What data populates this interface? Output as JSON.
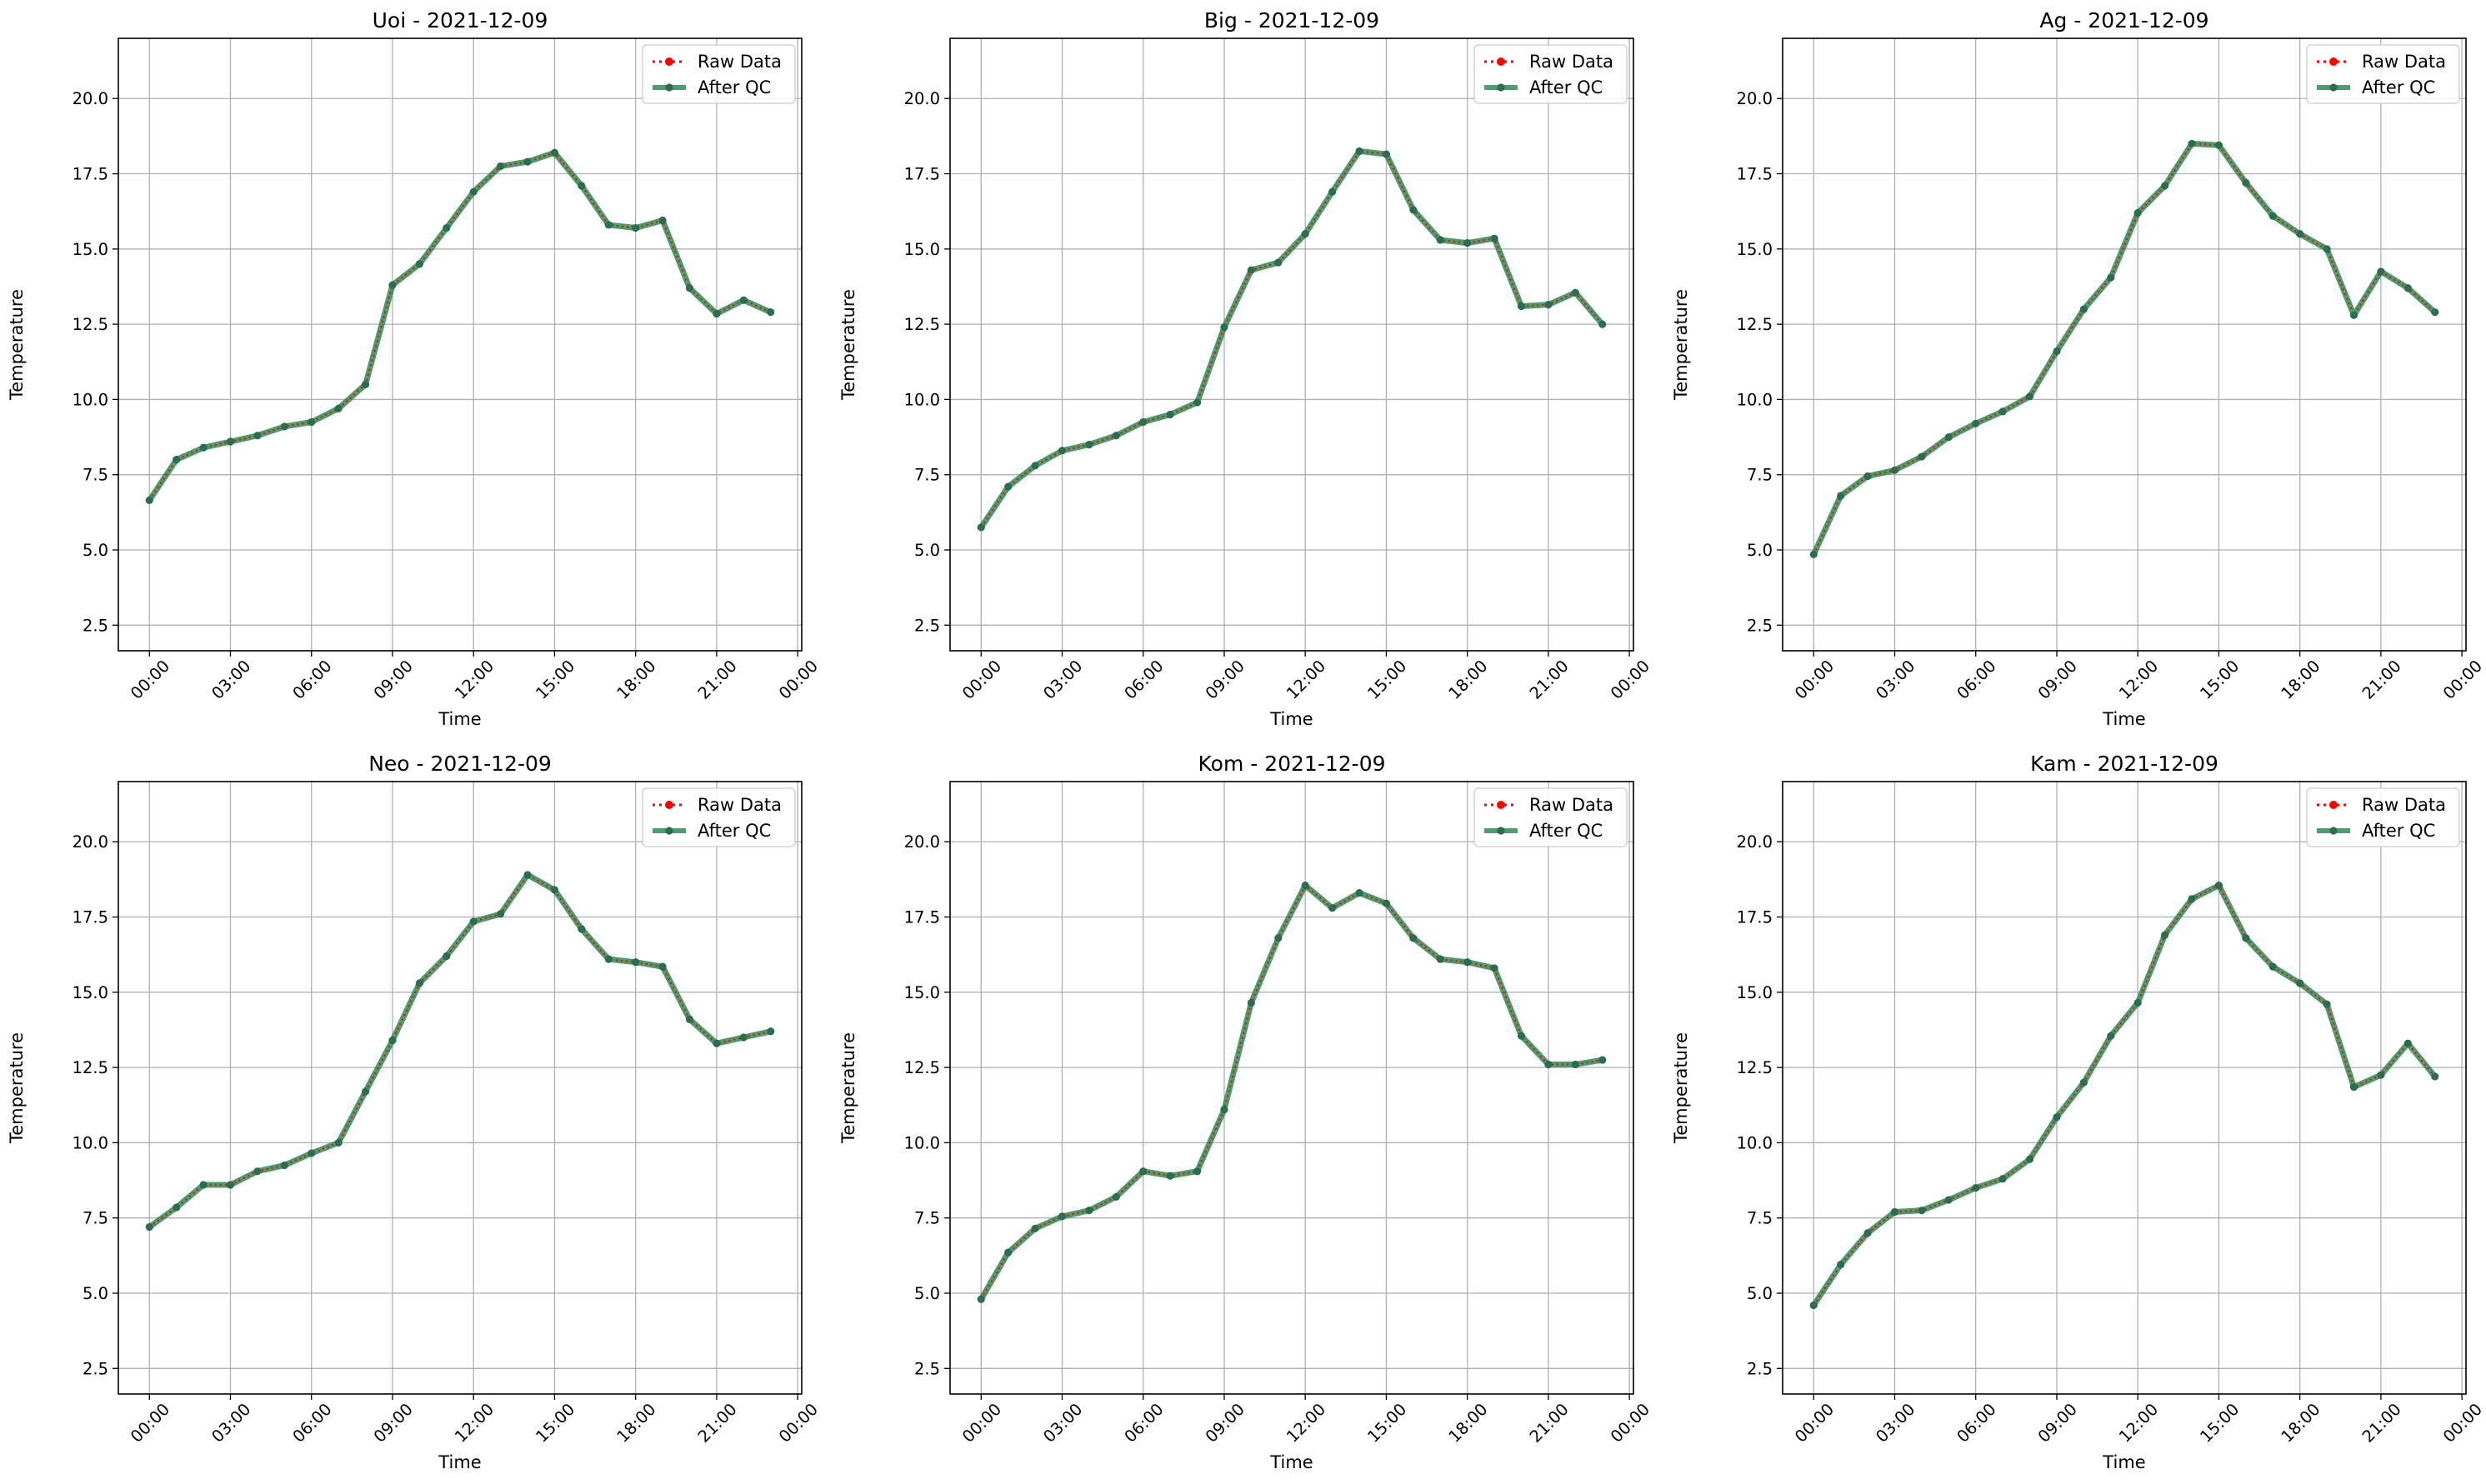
{
  "figure": {
    "x_tick_labels": [
      "00:00",
      "03:00",
      "06:00",
      "09:00",
      "12:00",
      "15:00",
      "18:00",
      "21:00",
      "00:00"
    ],
    "y_tick_labels": [
      "2.5",
      "5.0",
      "7.5",
      "10.0",
      "12.5",
      "15.0",
      "17.5",
      "20.0"
    ],
    "legend": {
      "raw": "Raw Data",
      "qc": "After QC"
    },
    "colors": {
      "raw": "#ff0000",
      "qc": "#2e8b57",
      "qc_marker": "#2e6b50",
      "grid": "#b0b0b0"
    }
  },
  "chart_data": [
    {
      "type": "line",
      "title": "Uoi - 2021-12-09",
      "xlabel": "Time",
      "ylabel": "Temperature",
      "x": [
        "00:00",
        "01:00",
        "02:00",
        "03:00",
        "04:00",
        "05:00",
        "06:00",
        "07:00",
        "08:00",
        "09:00",
        "10:00",
        "11:00",
        "12:00",
        "13:00",
        "14:00",
        "15:00",
        "16:00",
        "17:00",
        "18:00",
        "19:00",
        "20:00",
        "21:00",
        "22:00",
        "23:00"
      ],
      "xlim": [
        "2021-12-09 00:00",
        "2021-12-10 00:00"
      ],
      "ylim": [
        1.65,
        22.0
      ],
      "grid": true,
      "legend_position": "top-right",
      "series": [
        {
          "name": "Raw Data",
          "values": [
            6.65,
            8.0,
            8.4,
            8.6,
            8.8,
            9.1,
            9.25,
            9.7,
            10.5,
            13.8,
            14.5,
            15.7,
            16.9,
            17.75,
            17.9,
            18.2,
            17.1,
            15.8,
            15.7,
            15.95,
            13.7,
            12.85,
            13.3,
            12.9
          ]
        },
        {
          "name": "After QC",
          "values": [
            6.65,
            8.0,
            8.4,
            8.6,
            8.8,
            9.1,
            9.25,
            9.7,
            10.5,
            13.8,
            14.5,
            15.7,
            16.9,
            17.75,
            17.9,
            18.2,
            17.1,
            15.8,
            15.7,
            15.95,
            13.7,
            12.85,
            13.3,
            12.9
          ]
        }
      ]
    },
    {
      "type": "line",
      "title": "Big - 2021-12-09",
      "xlabel": "Time",
      "ylabel": "Temperature",
      "x": [
        "00:00",
        "01:00",
        "02:00",
        "03:00",
        "04:00",
        "05:00",
        "06:00",
        "07:00",
        "08:00",
        "09:00",
        "10:00",
        "11:00",
        "12:00",
        "13:00",
        "14:00",
        "15:00",
        "16:00",
        "17:00",
        "18:00",
        "19:00",
        "20:00",
        "21:00",
        "22:00",
        "23:00"
      ],
      "xlim": [
        "2021-12-09 00:00",
        "2021-12-10 00:00"
      ],
      "ylim": [
        1.65,
        22.0
      ],
      "grid": true,
      "legend_position": "top-right",
      "series": [
        {
          "name": "Raw Data",
          "values": [
            5.75,
            7.1,
            7.8,
            8.3,
            8.5,
            8.8,
            9.25,
            9.5,
            9.9,
            12.4,
            14.3,
            14.55,
            15.5,
            16.9,
            18.25,
            18.15,
            16.3,
            15.3,
            15.2,
            15.35,
            13.1,
            13.15,
            13.55,
            12.5
          ]
        },
        {
          "name": "After QC",
          "values": [
            5.75,
            7.1,
            7.8,
            8.3,
            8.5,
            8.8,
            9.25,
            9.5,
            9.9,
            12.4,
            14.3,
            14.55,
            15.5,
            16.9,
            18.25,
            18.15,
            16.3,
            15.3,
            15.2,
            15.35,
            13.1,
            13.15,
            13.55,
            12.5
          ]
        }
      ]
    },
    {
      "type": "line",
      "title": "Ag - 2021-12-09",
      "xlabel": "Time",
      "ylabel": "Temperature",
      "x": [
        "00:00",
        "01:00",
        "02:00",
        "03:00",
        "04:00",
        "05:00",
        "06:00",
        "07:00",
        "08:00",
        "09:00",
        "10:00",
        "11:00",
        "12:00",
        "13:00",
        "14:00",
        "15:00",
        "16:00",
        "17:00",
        "18:00",
        "19:00",
        "20:00",
        "21:00",
        "22:00",
        "23:00"
      ],
      "xlim": [
        "2021-12-09 00:00",
        "2021-12-10 00:00"
      ],
      "ylim": [
        1.65,
        22.0
      ],
      "grid": true,
      "legend_position": "top-right",
      "series": [
        {
          "name": "Raw Data",
          "values": [
            4.85,
            6.8,
            7.45,
            7.65,
            8.1,
            8.75,
            9.2,
            9.6,
            10.1,
            11.6,
            13.0,
            14.05,
            16.2,
            17.1,
            18.5,
            18.45,
            17.2,
            16.1,
            15.5,
            15.0,
            12.8,
            14.25,
            13.7,
            12.9
          ]
        },
        {
          "name": "After QC",
          "values": [
            4.85,
            6.8,
            7.45,
            7.65,
            8.1,
            8.75,
            9.2,
            9.6,
            10.1,
            11.6,
            13.0,
            14.05,
            16.2,
            17.1,
            18.5,
            18.45,
            17.2,
            16.1,
            15.5,
            15.0,
            12.8,
            14.25,
            13.7,
            12.9
          ]
        }
      ]
    },
    {
      "type": "line",
      "title": "Neo - 2021-12-09",
      "xlabel": "Time",
      "ylabel": "Temperature",
      "x": [
        "00:00",
        "01:00",
        "02:00",
        "03:00",
        "04:00",
        "05:00",
        "06:00",
        "07:00",
        "08:00",
        "09:00",
        "10:00",
        "11:00",
        "12:00",
        "13:00",
        "14:00",
        "15:00",
        "16:00",
        "17:00",
        "18:00",
        "19:00",
        "20:00",
        "21:00",
        "22:00",
        "23:00"
      ],
      "xlim": [
        "2021-12-09 00:00",
        "2021-12-10 00:00"
      ],
      "ylim": [
        1.65,
        22.0
      ],
      "grid": true,
      "legend_position": "top-right",
      "series": [
        {
          "name": "Raw Data",
          "values": [
            7.2,
            7.85,
            8.6,
            8.6,
            9.05,
            9.25,
            9.65,
            10.0,
            11.7,
            13.4,
            15.3,
            16.2,
            17.35,
            17.6,
            18.9,
            18.4,
            17.1,
            16.1,
            16.0,
            15.85,
            14.1,
            13.3,
            13.5,
            13.7
          ]
        },
        {
          "name": "After QC",
          "values": [
            7.2,
            7.85,
            8.6,
            8.6,
            9.05,
            9.25,
            9.65,
            10.0,
            11.7,
            13.4,
            15.3,
            16.2,
            17.35,
            17.6,
            18.9,
            18.4,
            17.1,
            16.1,
            16.0,
            15.85,
            14.1,
            13.3,
            13.5,
            13.7
          ]
        }
      ]
    },
    {
      "type": "line",
      "title": "Kom - 2021-12-09",
      "xlabel": "Time",
      "ylabel": "Temperature",
      "x": [
        "00:00",
        "01:00",
        "02:00",
        "03:00",
        "04:00",
        "05:00",
        "06:00",
        "07:00",
        "08:00",
        "09:00",
        "10:00",
        "11:00",
        "12:00",
        "13:00",
        "14:00",
        "15:00",
        "16:00",
        "17:00",
        "18:00",
        "19:00",
        "20:00",
        "21:00",
        "22:00",
        "23:00"
      ],
      "xlim": [
        "2021-12-09 00:00",
        "2021-12-10 00:00"
      ],
      "ylim": [
        1.65,
        22.0
      ],
      "grid": true,
      "legend_position": "top-right",
      "series": [
        {
          "name": "Raw Data",
          "values": [
            4.8,
            6.35,
            7.15,
            7.55,
            7.75,
            8.2,
            9.05,
            8.9,
            9.05,
            11.1,
            14.65,
            16.8,
            18.55,
            17.8,
            18.3,
            17.95,
            16.8,
            16.1,
            16.0,
            15.8,
            13.55,
            12.6,
            12.6,
            12.75
          ]
        },
        {
          "name": "After QC",
          "values": [
            4.8,
            6.35,
            7.15,
            7.55,
            7.75,
            8.2,
            9.05,
            8.9,
            9.05,
            11.1,
            14.65,
            16.8,
            18.55,
            17.8,
            18.3,
            17.95,
            16.8,
            16.1,
            16.0,
            15.8,
            13.55,
            12.6,
            12.6,
            12.75
          ]
        }
      ]
    },
    {
      "type": "line",
      "title": "Kam - 2021-12-09",
      "xlabel": "Time",
      "ylabel": "Temperature",
      "x": [
        "00:00",
        "01:00",
        "02:00",
        "03:00",
        "04:00",
        "05:00",
        "06:00",
        "07:00",
        "08:00",
        "09:00",
        "10:00",
        "11:00",
        "12:00",
        "13:00",
        "14:00",
        "15:00",
        "16:00",
        "17:00",
        "18:00",
        "19:00",
        "20:00",
        "21:00",
        "22:00",
        "23:00"
      ],
      "xlim": [
        "2021-12-09 00:00",
        "2021-12-10 00:00"
      ],
      "ylim": [
        1.65,
        22.0
      ],
      "grid": true,
      "legend_position": "top-right",
      "series": [
        {
          "name": "Raw Data",
          "values": [
            4.6,
            5.95,
            7.0,
            7.7,
            7.75,
            8.1,
            8.5,
            8.8,
            9.45,
            10.85,
            12.0,
            13.55,
            14.65,
            16.9,
            18.1,
            18.55,
            16.8,
            15.85,
            15.3,
            14.6,
            11.85,
            12.25,
            13.3,
            12.2
          ]
        },
        {
          "name": "After QC",
          "values": [
            4.6,
            5.95,
            7.0,
            7.7,
            7.75,
            8.1,
            8.5,
            8.8,
            9.45,
            10.85,
            12.0,
            13.55,
            14.65,
            16.9,
            18.1,
            18.55,
            16.8,
            15.85,
            15.3,
            14.6,
            11.85,
            12.25,
            13.3,
            12.2
          ]
        }
      ]
    }
  ]
}
